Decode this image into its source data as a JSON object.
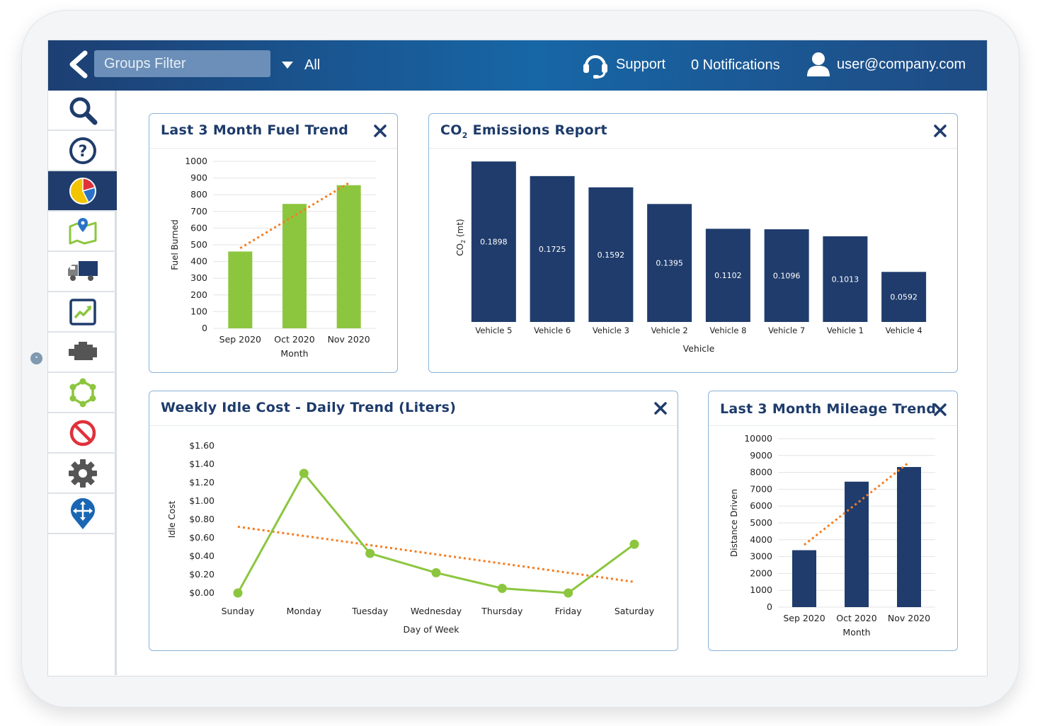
{
  "topbar": {
    "groups_filter_placeholder": "Groups Filter",
    "all_label": "All",
    "support_label": "Support",
    "notifications_label": "0 Notifications",
    "user_label": "user@company.com"
  },
  "sidebar": {
    "items": [
      {
        "icon": "search-icon"
      },
      {
        "icon": "help-icon"
      },
      {
        "icon": "pie-chart-icon",
        "active": true
      },
      {
        "icon": "map-pin-icon"
      },
      {
        "icon": "truck-icon"
      },
      {
        "icon": "trend-chart-icon"
      },
      {
        "icon": "engine-icon"
      },
      {
        "icon": "geofence-icon"
      },
      {
        "icon": "no-entry-icon"
      },
      {
        "icon": "gear-icon"
      },
      {
        "icon": "move-pin-icon"
      }
    ]
  },
  "colors": {
    "navy": "#1f3c6c",
    "green": "#8cc63f",
    "orange": "#f47c20",
    "panel_border": "#8cb4dc"
  },
  "panels": {
    "fuel": {
      "title": "Last 3 Month Fuel Trend"
    },
    "co2": {
      "title_prefix": "CO",
      "title_sub": "2",
      "title_suffix": " Emissions Report"
    },
    "idle": {
      "title": "Weekly Idle Cost - Daily Trend (Liters)"
    },
    "mileage": {
      "title": "Last 3 Month Mileage Trend"
    }
  },
  "chart_data": [
    {
      "id": "fuel",
      "type": "bar",
      "categories": [
        "Sep 2020",
        "Oct 2020",
        "Nov 2020"
      ],
      "values": [
        460,
        745,
        857
      ],
      "trendline": [
        480,
        675,
        870
      ],
      "ylim": [
        0,
        1000
      ],
      "yticks": [
        "0",
        "100",
        "200",
        "300",
        "400",
        "500",
        "600",
        "700",
        "800",
        "900",
        "1000"
      ],
      "xlabel": "Month",
      "ylabel": "Fuel Burned",
      "grid": true
    },
    {
      "id": "co2",
      "type": "bar",
      "categories": [
        "Vehicle 5",
        "Vehicle 6",
        "Vehicle 3",
        "Vehicle 2",
        "Vehicle 8",
        "Vehicle 7",
        "Vehicle 1",
        "Vehicle 4"
      ],
      "values": [
        0.1898,
        0.1725,
        0.1592,
        0.1395,
        0.1102,
        0.1096,
        0.1013,
        0.0592
      ],
      "value_labels": [
        "0.1898",
        "0.1725",
        "0.1592",
        "0.1395",
        "0.1102",
        "0.1096",
        "0.1013",
        "0.0592"
      ],
      "ylim": [
        0,
        0.2
      ],
      "xlabel": "Vehicle",
      "ylabel_prefix": "CO",
      "ylabel_sub": "2",
      "ylabel_suffix": " (mt)",
      "grid": false
    },
    {
      "id": "idle",
      "type": "line",
      "categories": [
        "Sunday",
        "Monday",
        "Tuesday",
        "Wednesday",
        "Thursday",
        "Friday",
        "Saturday"
      ],
      "values": [
        0.0,
        1.3,
        0.43,
        0.22,
        0.05,
        0.0,
        0.53
      ],
      "trendline": [
        0.72,
        0.12
      ],
      "ylim": [
        0,
        1.6
      ],
      "yticks": [
        "$0.00",
        "$0.20",
        "$0.40",
        "$0.60",
        "$0.80",
        "$1.00",
        "$1.20",
        "$1.40",
        "$1.60"
      ],
      "xlabel": "Day of Week",
      "ylabel": "Idle Cost",
      "grid": false
    },
    {
      "id": "mileage",
      "type": "bar",
      "categories": [
        "Sep 2020",
        "Oct 2020",
        "Nov 2020"
      ],
      "values": [
        3380,
        7450,
        8320
      ],
      "trendline": [
        3700,
        6150,
        8600
      ],
      "ylim": [
        0,
        10000
      ],
      "yticks": [
        "0",
        "1000",
        "2000",
        "3000",
        "4000",
        "5000",
        "6000",
        "7000",
        "8000",
        "9000",
        "10000"
      ],
      "xlabel": "Month",
      "ylabel": "Distance Driven",
      "grid": true
    }
  ]
}
